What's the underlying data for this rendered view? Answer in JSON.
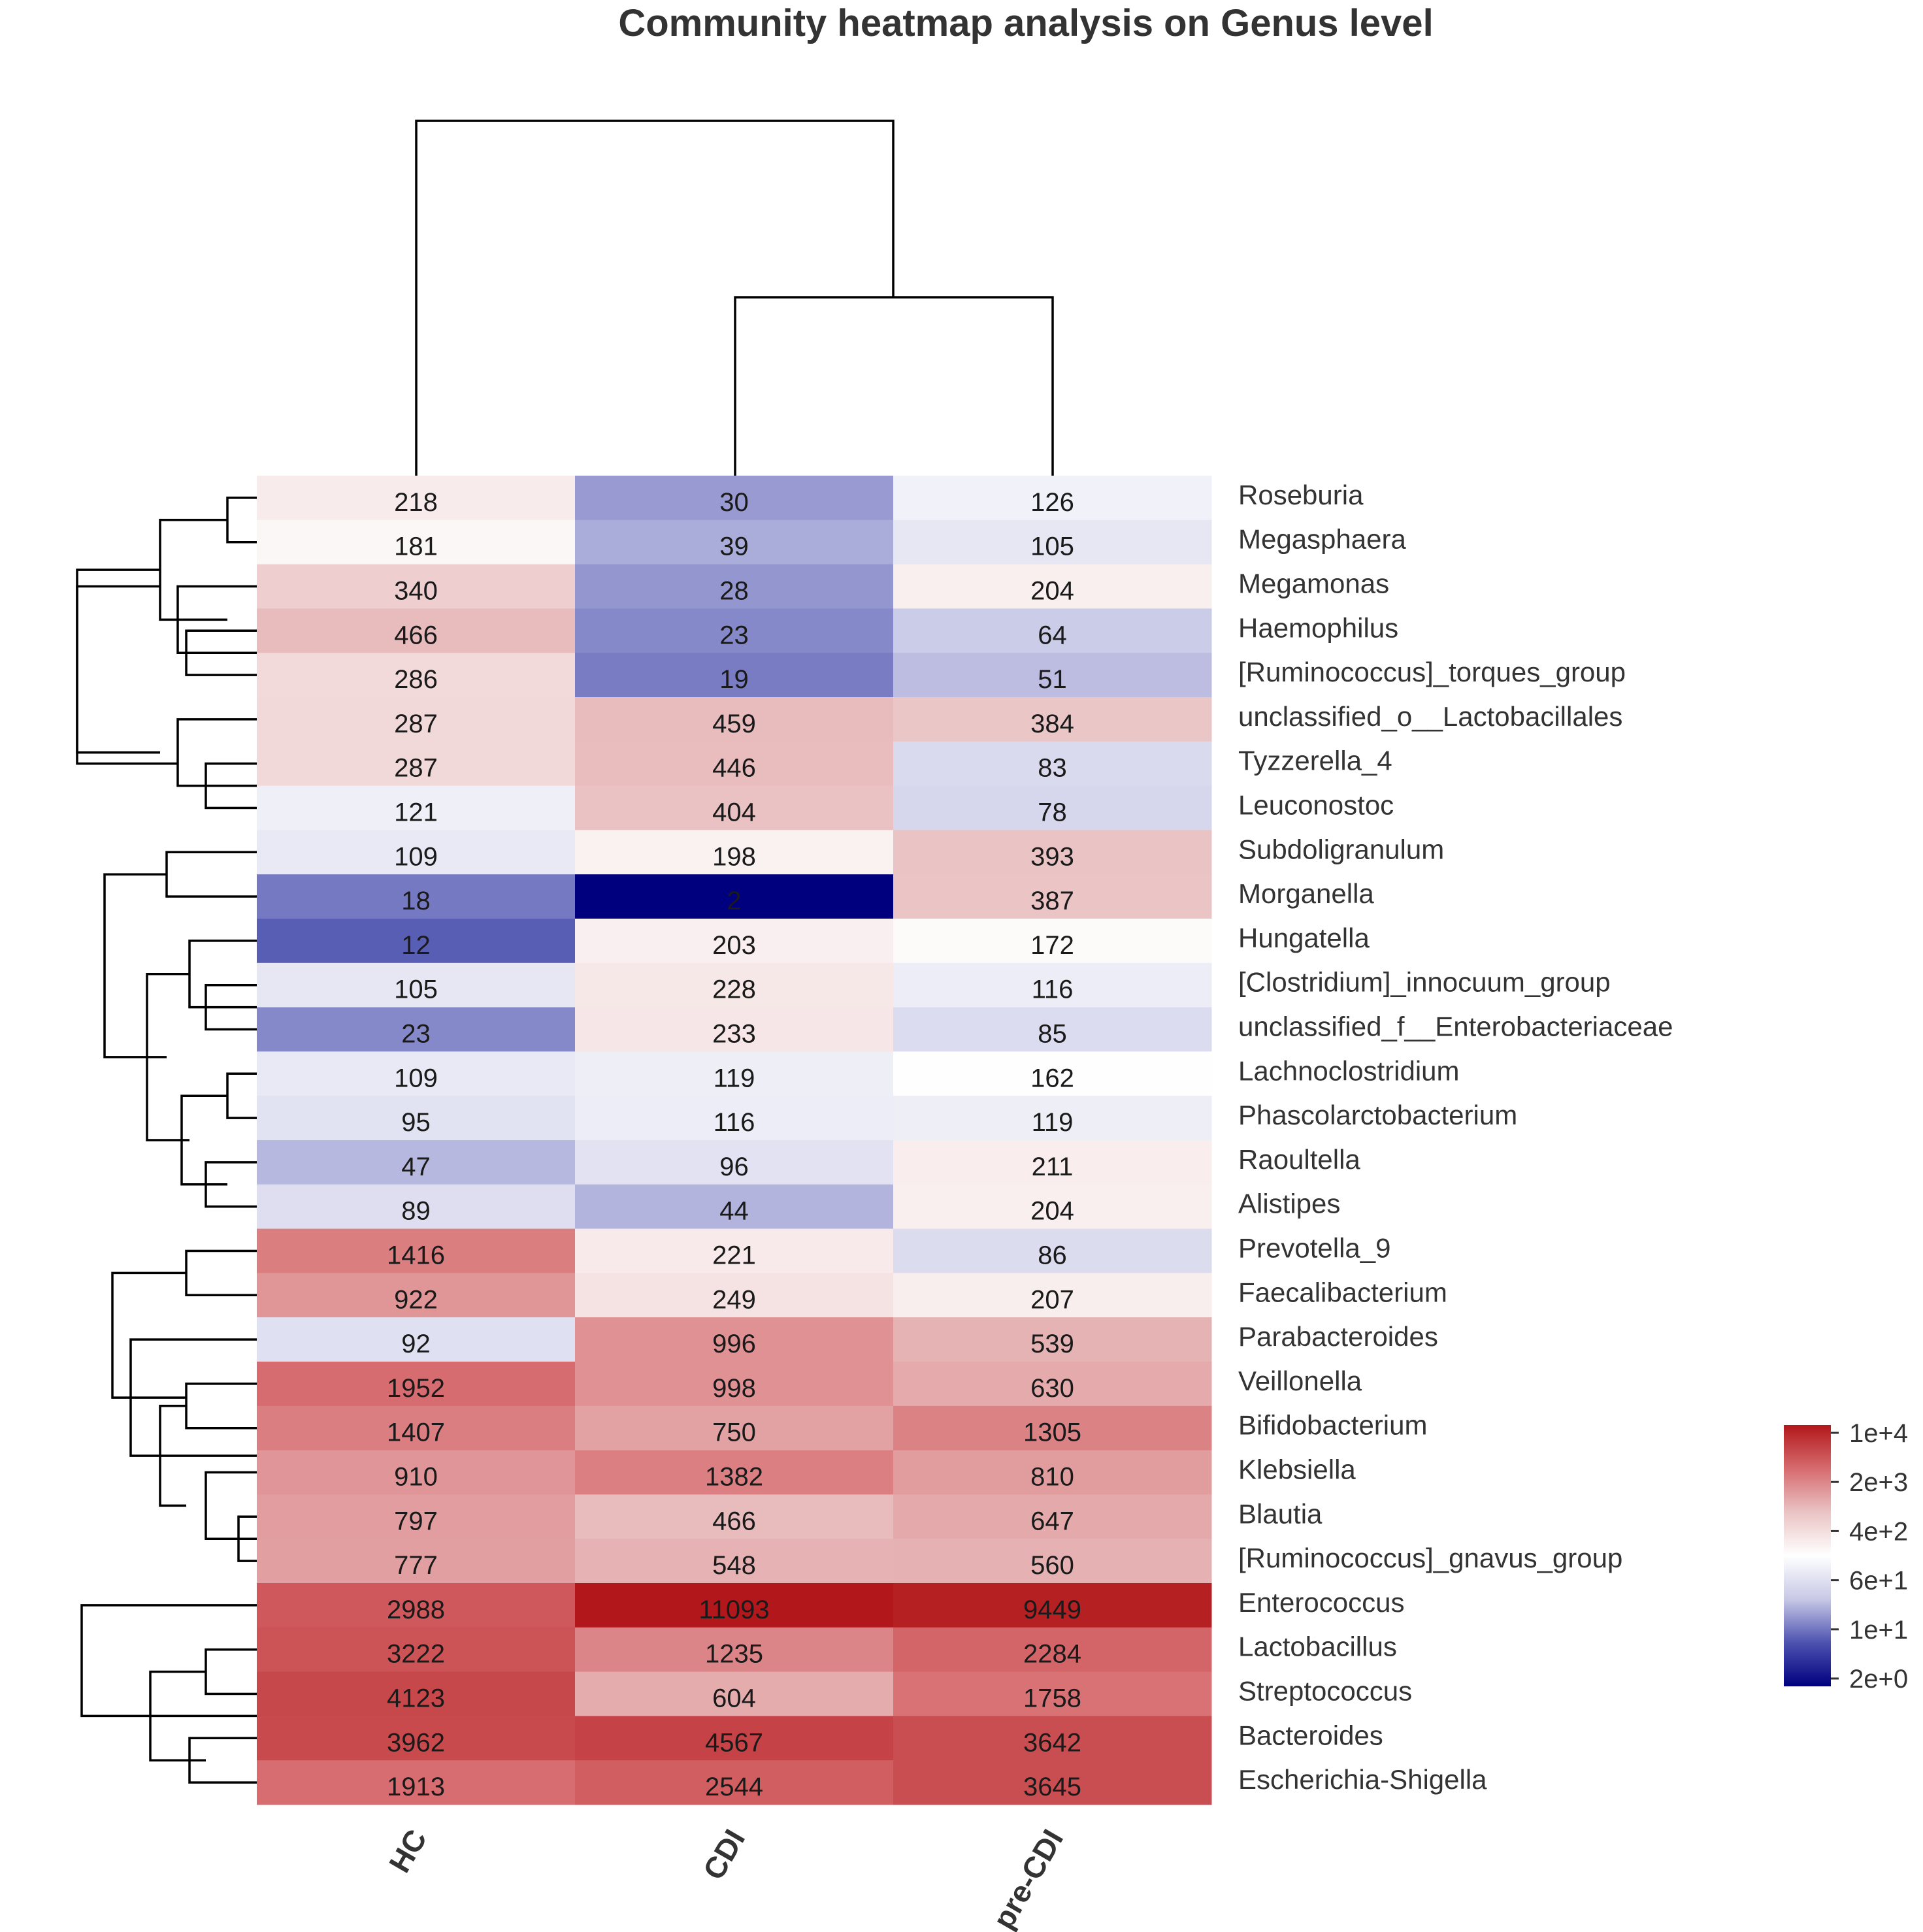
{
  "chart_data": {
    "type": "heatmap",
    "title": "Community heatmap analysis on Genus level",
    "columns": [
      "HC",
      "CDI",
      "pre-CDI"
    ],
    "rows": [
      {
        "label": "Roseburia",
        "values": [
          218,
          30,
          126
        ]
      },
      {
        "label": "Megasphaera",
        "values": [
          181,
          39,
          105
        ]
      },
      {
        "label": "Megamonas",
        "values": [
          340,
          28,
          204
        ]
      },
      {
        "label": "Haemophilus",
        "values": [
          466,
          23,
          64
        ]
      },
      {
        "label": "[Ruminococcus]_torques_group",
        "values": [
          286,
          19,
          51
        ]
      },
      {
        "label": "unclassified_o__Lactobacillales",
        "values": [
          287,
          459,
          384
        ]
      },
      {
        "label": "Tyzzerella_4",
        "values": [
          287,
          446,
          83
        ]
      },
      {
        "label": "Leuconostoc",
        "values": [
          121,
          404,
          78
        ]
      },
      {
        "label": "Subdoligranulum",
        "values": [
          109,
          198,
          393
        ]
      },
      {
        "label": "Morganella",
        "values": [
          18,
          2,
          387
        ]
      },
      {
        "label": "Hungatella",
        "values": [
          12,
          203,
          172
        ]
      },
      {
        "label": "[Clostridium]_innocuum_group",
        "values": [
          105,
          228,
          116
        ]
      },
      {
        "label": "unclassified_f__Enterobacteriaceae",
        "values": [
          23,
          233,
          85
        ]
      },
      {
        "label": "Lachnoclostridium",
        "values": [
          109,
          119,
          162
        ]
      },
      {
        "label": "Phascolarctobacterium",
        "values": [
          95,
          116,
          119
        ]
      },
      {
        "label": "Raoultella",
        "values": [
          47,
          96,
          211
        ]
      },
      {
        "label": "Alistipes",
        "values": [
          89,
          44,
          204
        ]
      },
      {
        "label": "Prevotella_9",
        "values": [
          1416,
          221,
          86
        ]
      },
      {
        "label": "Faecalibacterium",
        "values": [
          922,
          249,
          207
        ]
      },
      {
        "label": "Parabacteroides",
        "values": [
          92,
          996,
          539
        ]
      },
      {
        "label": "Veillonella",
        "values": [
          1952,
          998,
          630
        ]
      },
      {
        "label": "Bifidobacterium",
        "values": [
          1407,
          750,
          1305
        ]
      },
      {
        "label": "Klebsiella",
        "values": [
          910,
          1382,
          810
        ]
      },
      {
        "label": "Blautia",
        "values": [
          797,
          466,
          647
        ]
      },
      {
        "label": "[Ruminococcus]_gnavus_group",
        "values": [
          777,
          548,
          560
        ]
      },
      {
        "label": "Enterococcus",
        "values": [
          2988,
          11093,
          9449
        ]
      },
      {
        "label": "Lactobacillus",
        "values": [
          3222,
          1235,
          2284
        ]
      },
      {
        "label": "Streptococcus",
        "values": [
          4123,
          604,
          1758
        ]
      },
      {
        "label": "Bacteroides",
        "values": [
          3962,
          4567,
          3642
        ]
      },
      {
        "label": "Escherichia-Shigella",
        "values": [
          1913,
          2544,
          3645
        ]
      }
    ],
    "color_scale": {
      "scale": "log",
      "stops": [
        {
          "value": 2,
          "color": "#00007f"
        },
        {
          "value": 10,
          "color": "#4d52b0"
        },
        {
          "value": 60,
          "color": "#c7c8e6"
        },
        {
          "value": 160,
          "color": "#ffffff"
        },
        {
          "value": 400,
          "color": "#eac3c4"
        },
        {
          "value": 2000,
          "color": "#d66b6e"
        },
        {
          "value": 11093,
          "color": "#b2181b"
        }
      ]
    },
    "legend": {
      "ticks": [
        "1e+4",
        "2e+3",
        "4e+2",
        "6e+1",
        "1e+1",
        "2e+0"
      ],
      "colors": [
        "#b2181b",
        "#d66b6e",
        "#eac3c4",
        "#ffffff",
        "#c7c8e6",
        "#4d52b0",
        "#00007f"
      ]
    }
  }
}
